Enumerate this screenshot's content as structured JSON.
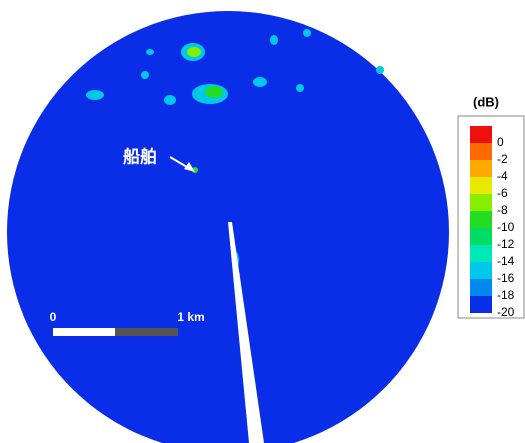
{
  "annotation": "船舶",
  "scale_bar": {
    "start_label": "0",
    "end_label": "1 km"
  },
  "colorbar": {
    "unit": "(dB)",
    "levels": [
      0,
      -2,
      -4,
      -6,
      -8,
      -10,
      -12,
      -14,
      -16,
      -18,
      -20
    ],
    "colors": [
      "#ee1010",
      "#ff6a00",
      "#ffaa00",
      "#e8e800",
      "#88ee00",
      "#22dd22",
      "#00dd66",
      "#00e8b8",
      "#00c8e8",
      "#0088ee",
      "#0a2ee8"
    ]
  }
}
